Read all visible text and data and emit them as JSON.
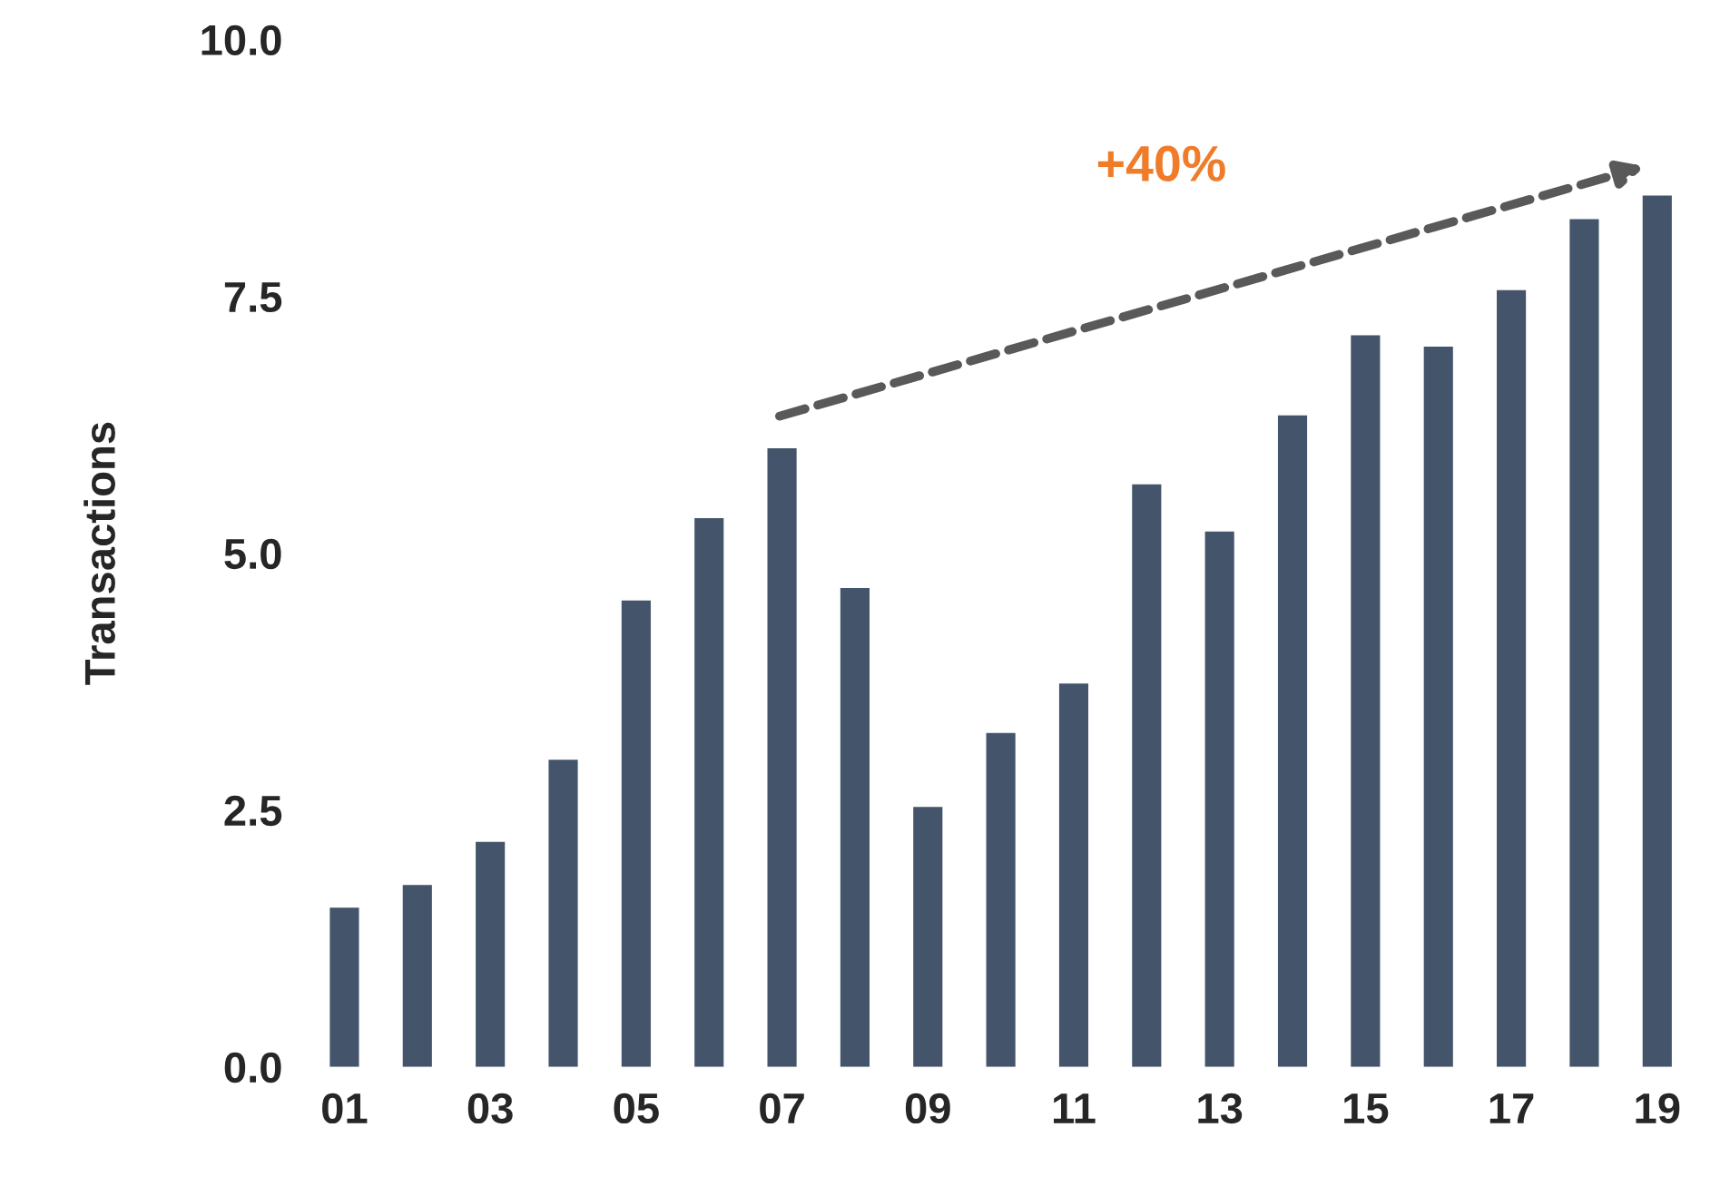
{
  "chart_data": {
    "type": "bar",
    "ylabel": "Transactions",
    "categories": [
      "01",
      null,
      "03",
      null,
      "05",
      null,
      "07",
      null,
      "09",
      null,
      "11",
      null,
      "13",
      null,
      "15",
      null,
      "17",
      null,
      "19"
    ],
    "values": [
      1.55,
      1.77,
      2.19,
      2.99,
      4.54,
      5.34,
      6.02,
      4.66,
      2.53,
      3.25,
      3.73,
      5.67,
      5.21,
      6.34,
      7.12,
      7.01,
      7.56,
      8.25,
      8.48
    ],
    "color": "#44546a",
    "ylim": [
      0,
      10
    ],
    "yticks": [
      {
        "value": 0,
        "label": "0.0"
      },
      {
        "value": 2.5,
        "label": "2.5"
      },
      {
        "value": 5,
        "label": "5.0"
      },
      {
        "value": 7.5,
        "label": "7.5"
      },
      {
        "value": 10,
        "label": "10.0"
      }
    ],
    "annotations": [
      "+40%"
    ],
    "grid": false
  }
}
